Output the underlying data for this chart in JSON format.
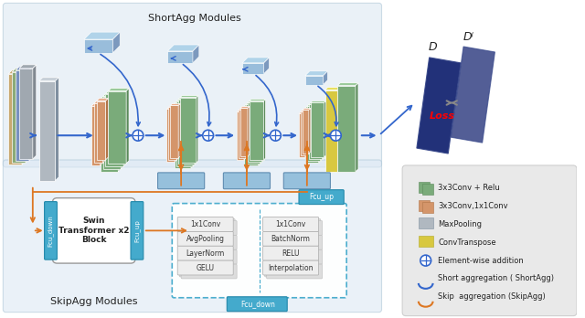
{
  "title_short": "ShortAgg Modules",
  "title_skip": "SkipAgg Modules",
  "legend_items": [
    {
      "label": "3x3Conv + Relu",
      "color": "#7aab7a",
      "type": "block"
    },
    {
      "label": "3x3Conv,1x1Conv",
      "color": "#d4956a",
      "type": "block"
    },
    {
      "label": "MaxPooling",
      "color": "#aaaaaa",
      "type": "block"
    },
    {
      "label": "ConvTranspose",
      "color": "#d4c84a",
      "type": "block"
    },
    {
      "label": "Element-wise addition",
      "color": "#333399",
      "type": "circle_plus"
    },
    {
      "label": "Short aggregation ( ShortAgg)",
      "color": "#4488cc",
      "type": "arc"
    },
    {
      "label": "Skip  aggregation (SkipAgg)",
      "color": "#cc6622",
      "type": "arc"
    }
  ],
  "swin_label": "Swin\nTransformer x2\nBlock",
  "fcu_down_label": "Fcu_down",
  "fcu_up_label": "Fcu_up",
  "fcu_up2_label": "Fcu_up",
  "fcu_down2_label": "Fcu_down",
  "loss_label": "Loss",
  "D_label": "D",
  "Di_label": "Dʲ",
  "inner_box_items_left": [
    "1x1Conv",
    "AvgPooling",
    "LayerNorm",
    "GELU"
  ],
  "inner_box_items_right": [
    "1x1Conv",
    "BatchNorm",
    "RELU",
    "Interpolation"
  ],
  "green_face": "#7aab7a",
  "green_side": "#5a8a5a",
  "green_top": "#9bca9b",
  "orange_face": "#d4956a",
  "orange_side": "#b07548",
  "orange_top": "#e8b090",
  "gray_face": "#b0b8c0",
  "gray_side": "#8090a0",
  "gray_top": "#c8d0d8",
  "blue_plane": "#90b8d8",
  "blue_plane_edge": "#6090b8",
  "short_bg": "#dde8f2",
  "skip_bg": "#dce8f4",
  "arrow_blue": "#3366cc",
  "arrow_orange": "#dd7722",
  "cyan_box": "#44aacc"
}
